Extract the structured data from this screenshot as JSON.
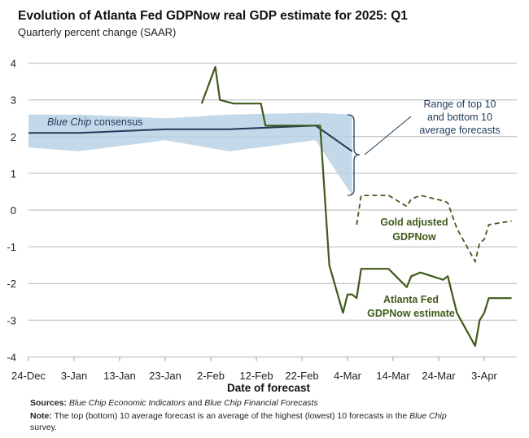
{
  "chart_data": {
    "type": "line",
    "title": "Evolution of Atlanta Fed GDPNow real GDP estimate for 2025: Q1",
    "subtitle": "Quarterly percent change (SAAR)",
    "xlabel": "Date of forecast",
    "ylabel": "",
    "ylim": [
      -4,
      4
    ],
    "xlim": [
      "2024-12-24",
      "2025-04-10"
    ],
    "grid": true,
    "yticks": [
      "4",
      "3",
      "2",
      "1",
      "0",
      "-1",
      "-2",
      "-3",
      "-4"
    ],
    "xticks": [
      {
        "date": "2024-12-24",
        "label": "24-Dec"
      },
      {
        "date": "2025-01-03",
        "label": "3-Jan"
      },
      {
        "date": "2025-01-13",
        "label": "13-Jan"
      },
      {
        "date": "2025-01-23",
        "label": "23-Jan"
      },
      {
        "date": "2025-02-02",
        "label": "2-Feb"
      },
      {
        "date": "2025-02-12",
        "label": "12-Feb"
      },
      {
        "date": "2025-02-22",
        "label": "22-Feb"
      },
      {
        "date": "2025-03-04",
        "label": "4-Mar"
      },
      {
        "date": "2025-03-14",
        "label": "14-Mar"
      },
      {
        "date": "2025-03-24",
        "label": "24-Mar"
      },
      {
        "date": "2025-04-03",
        "label": "3-Apr"
      }
    ],
    "colors": {
      "gdpnow": "#3f5a1a",
      "consensus": "#1f3b5a",
      "band": "#b9d1e4"
    },
    "series": [
      {
        "name": "Atlanta Fed GDPNow estimate",
        "style": "solid",
        "x": [
          "2025-01-31",
          "2025-02-03",
          "2025-02-04",
          "2025-02-07",
          "2025-02-13",
          "2025-02-14",
          "2025-02-26",
          "2025-02-28",
          "2025-03-03",
          "2025-03-04",
          "2025-03-05",
          "2025-03-06",
          "2025-03-07",
          "2025-03-13",
          "2025-03-17",
          "2025-03-18",
          "2025-03-20",
          "2025-03-25",
          "2025-03-26",
          "2025-03-28",
          "2025-04-01",
          "2025-04-02",
          "2025-04-03",
          "2025-04-04",
          "2025-04-09"
        ],
        "y": [
          2.9,
          3.9,
          3.0,
          2.9,
          2.9,
          2.3,
          2.3,
          -1.5,
          -2.8,
          -2.3,
          -2.3,
          -2.4,
          -1.6,
          -1.6,
          -2.1,
          -1.8,
          -1.7,
          -1.9,
          -1.8,
          -2.8,
          -3.7,
          -3.0,
          -2.8,
          -2.4,
          -2.4
        ]
      },
      {
        "name": "Gold adjusted GDPNow",
        "style": "dashed",
        "x": [
          "2025-03-06",
          "2025-03-07",
          "2025-03-13",
          "2025-03-17",
          "2025-03-18",
          "2025-03-20",
          "2025-03-25",
          "2025-03-26",
          "2025-03-28",
          "2025-04-01",
          "2025-04-02",
          "2025-04-03",
          "2025-04-04",
          "2025-04-09"
        ],
        "y": [
          -0.4,
          0.4,
          0.4,
          0.1,
          0.3,
          0.4,
          0.25,
          0.2,
          -0.5,
          -1.4,
          -0.9,
          -0.8,
          -0.4,
          -0.3
        ]
      },
      {
        "name": "Blue Chip consensus",
        "style": "solid",
        "x": [
          "2024-12-24",
          "2025-01-04",
          "2025-01-23",
          "2025-02-06",
          "2025-02-25",
          "2025-03-05"
        ],
        "y": [
          2.1,
          2.1,
          2.2,
          2.2,
          2.3,
          1.6
        ],
        "top10": [
          2.6,
          2.6,
          2.5,
          2.6,
          2.65,
          2.6
        ],
        "bottom10": [
          1.7,
          1.6,
          1.9,
          1.6,
          1.9,
          0.4
        ]
      }
    ],
    "annotations": {
      "consensus_italic": "Blue Chip",
      "consensus_rest": " consensus",
      "range": [
        "Range of top 10",
        "and bottom 10",
        "average forecasts"
      ],
      "gold": [
        "Gold adjusted",
        "GDPNow"
      ],
      "gdpnow": [
        "Atlanta Fed",
        "GDPNow estimate"
      ]
    }
  },
  "footnotes": {
    "sources_label": "Sources:",
    "sources_italic1": "Blue Chip Economic Indicators",
    "sources_and": " and ",
    "sources_italic2": "Blue Chip Financial Forecasts",
    "note_label": "Note:",
    "note_text": " The top (bottom) 10 average forecast is an average of the highest (lowest) 10 forecasts in the ",
    "note_italic": "Blue Chip",
    "note_text2": "survey."
  }
}
